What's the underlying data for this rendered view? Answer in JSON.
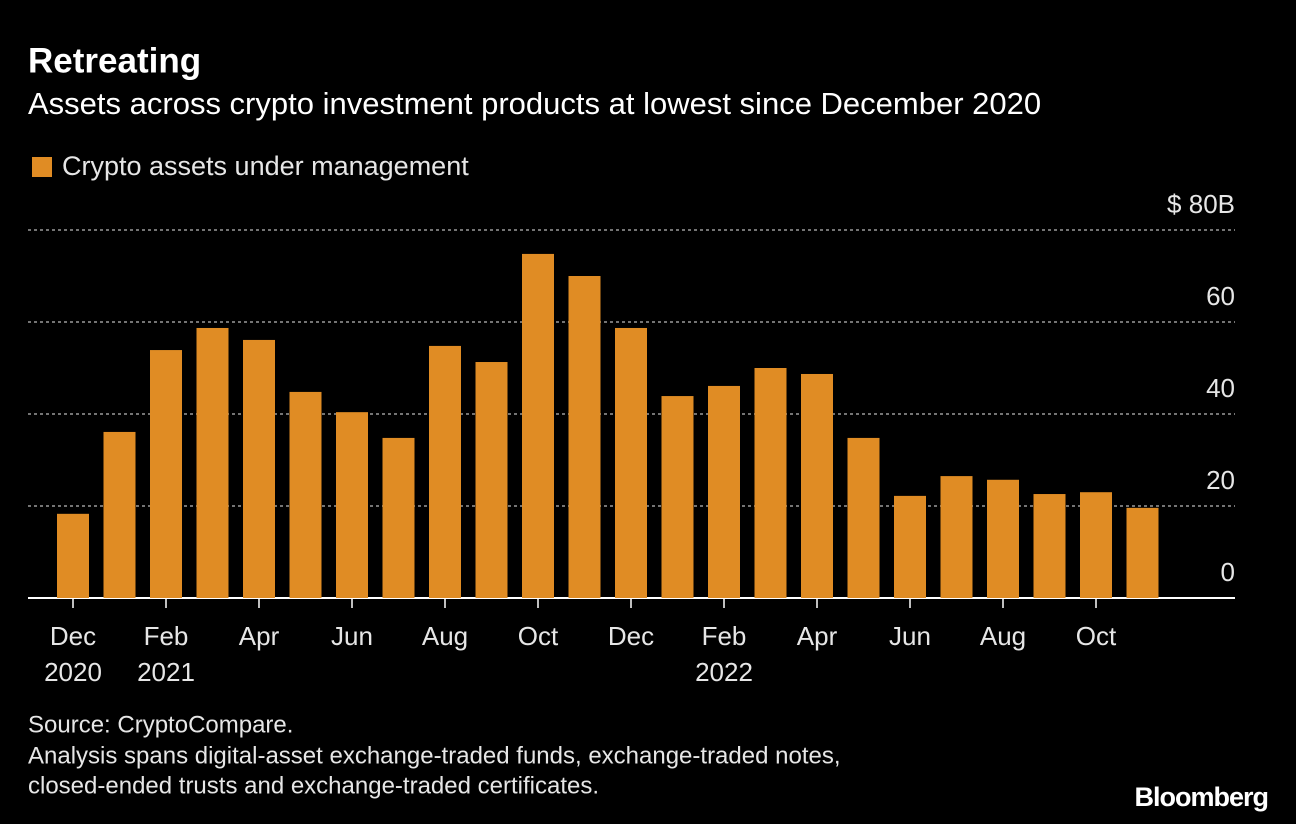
{
  "chart_data": {
    "type": "bar",
    "title": "Retreating",
    "subtitle": "Assets across crypto investment products at lowest since December 2020",
    "categories": [
      "Dec",
      null,
      "Feb",
      null,
      "Apr",
      null,
      "Jun",
      null,
      "Aug",
      null,
      "Oct",
      null,
      "Dec",
      null,
      "Feb",
      null,
      "Apr",
      null,
      "Jun",
      null,
      "Aug",
      null,
      "Oct",
      null
    ],
    "category_years": [
      "2020",
      null,
      "2021",
      null,
      null,
      null,
      null,
      null,
      null,
      null,
      null,
      null,
      null,
      null,
      "2022",
      null,
      null,
      null,
      null,
      null,
      null,
      null,
      null,
      null
    ],
    "series": [
      {
        "name": "Crypto assets under management",
        "color": "#e08c24",
        "values": [
          18.3,
          36.1,
          53.9,
          58.7,
          56.1,
          44.8,
          40.4,
          34.8,
          54.8,
          51.3,
          74.8,
          70.0,
          58.7,
          43.9,
          46.1,
          50.0,
          48.7,
          34.8,
          22.2,
          26.5,
          25.7,
          22.6,
          23.0,
          19.6
        ]
      }
    ],
    "ylim": [
      0,
      80
    ],
    "yticks": [
      0,
      20,
      40,
      60,
      {
        "value": 80,
        "label": "$ 80B"
      }
    ],
    "grid": true,
    "source": "Source: CryptoCompare.",
    "notes": [
      "Analysis spans digital-asset exchange-traded funds, exchange-traded notes,",
      "closed-ended trusts and exchange-traded certificates."
    ],
    "brand": "Bloomberg"
  }
}
